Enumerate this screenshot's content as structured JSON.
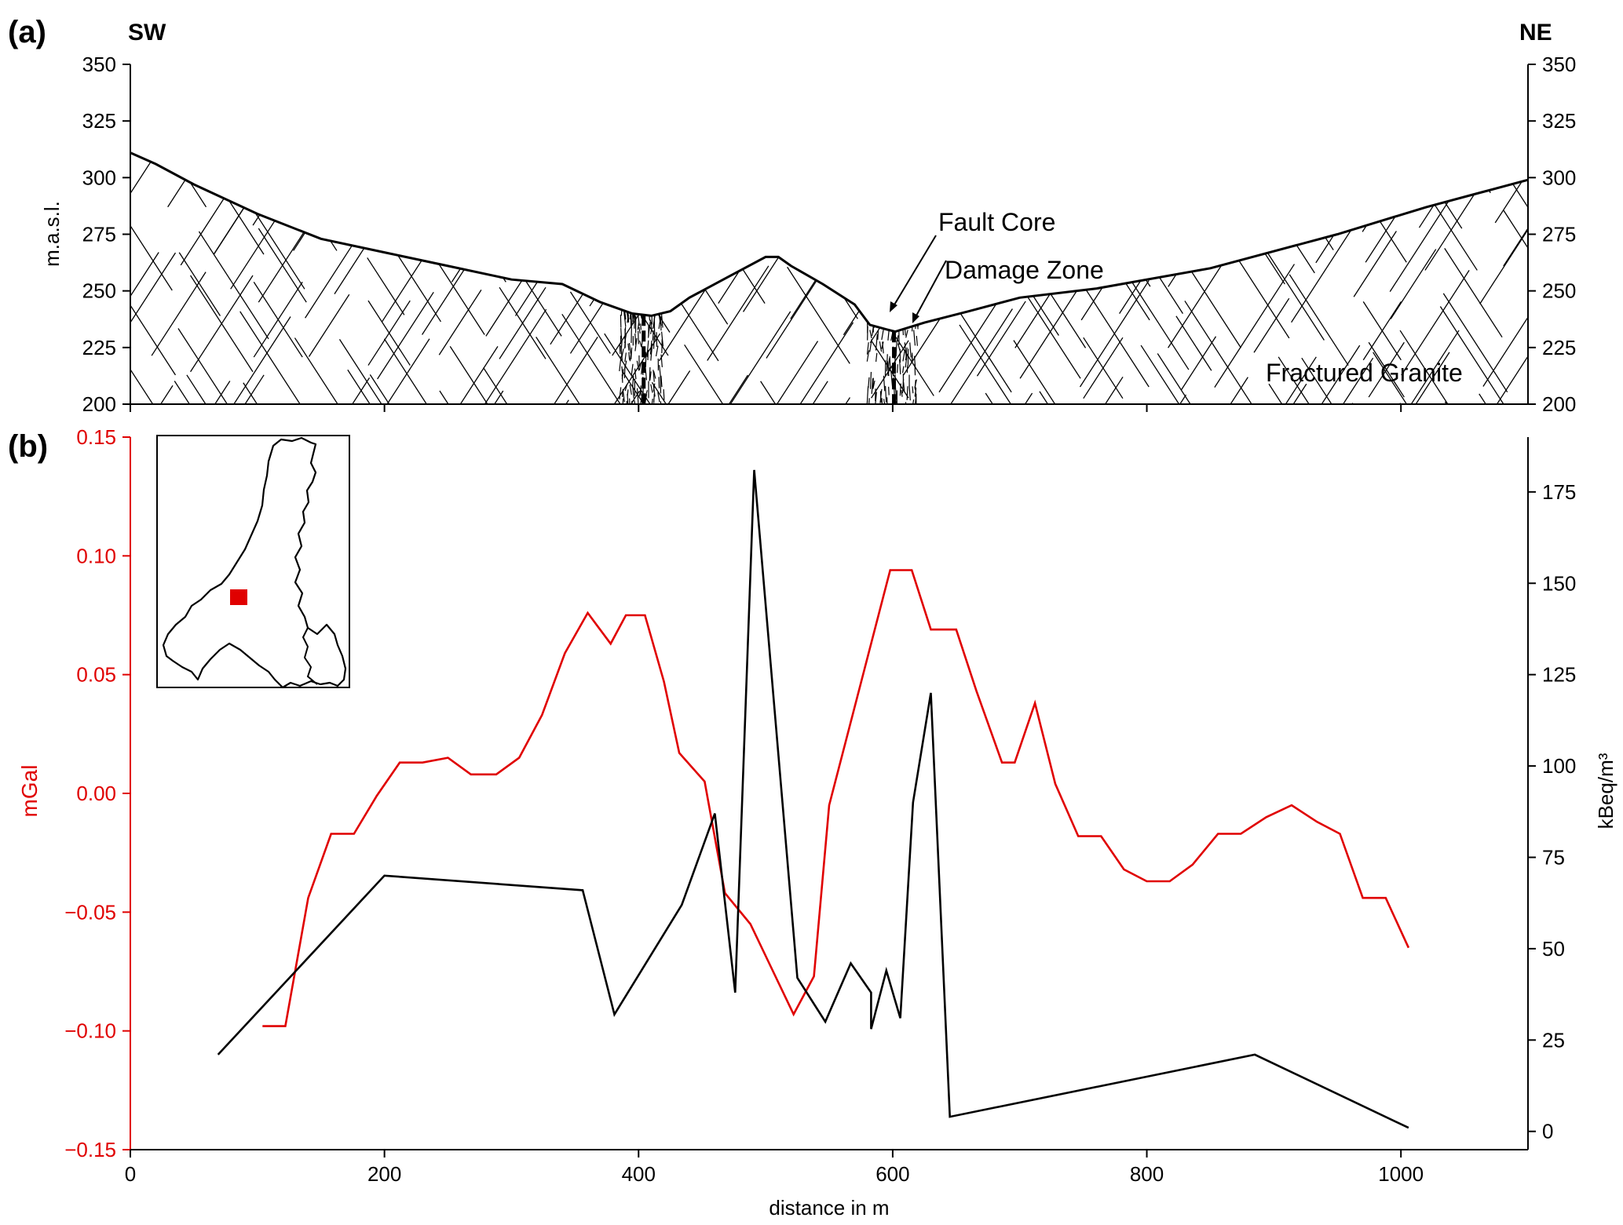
{
  "panels": {
    "a": {
      "letter": "(a)"
    },
    "b": {
      "letter": "(b)"
    }
  },
  "chart_data": [
    {
      "type": "area",
      "panel": "(a)",
      "direction_left": "SW",
      "direction_right": "NE",
      "ylabel": "m.a.s.l.",
      "xlim": [
        0,
        1100
      ],
      "ylim": [
        200,
        350
      ],
      "yticks": [
        200,
        225,
        250,
        275,
        300,
        325,
        350
      ],
      "xticks": [
        0,
        200,
        400,
        600,
        800,
        1000
      ],
      "topography": {
        "x": [
          0,
          20,
          50,
          100,
          150,
          200,
          250,
          300,
          340,
          370,
          395,
          410,
          425,
          440,
          470,
          500,
          510,
          520,
          545,
          570,
          582,
          595,
          602,
          625,
          660,
          700,
          760,
          850,
          950,
          1020,
          1060,
          1100
        ],
        "y": [
          311,
          306,
          297,
          284,
          273,
          267,
          261,
          255,
          253,
          245,
          240,
          239,
          241,
          247,
          256,
          265,
          265,
          261,
          253,
          244,
          235,
          233,
          232,
          236,
          241,
          247,
          251,
          260,
          275,
          287,
          293,
          299
        ]
      },
      "fault_core_x": [
        404,
        601
      ],
      "damage_zones": [
        [
          385,
          420
        ],
        [
          580,
          620
        ]
      ],
      "annotations": [
        "Fault Core",
        "Damage Zone",
        "Fractured Granite"
      ]
    },
    {
      "type": "line",
      "panel": "(b)",
      "xlabel": "distance in m",
      "ylabel_left": "mGal",
      "ylabel_right": "kBeq/m³",
      "xlim": [
        0,
        1100
      ],
      "ylim_left": [
        -0.15,
        0.15
      ],
      "ylim_right": [
        -5,
        190
      ],
      "xticks": [
        0,
        200,
        400,
        600,
        800,
        1000
      ],
      "yticks_left": [
        "−0.15",
        "−0.10",
        "−0.05",
        "0.00",
        "0.05",
        "0.10",
        "0.15"
      ],
      "yticks_left_values": [
        -0.15,
        -0.1,
        -0.05,
        0.0,
        0.05,
        0.1,
        0.15
      ],
      "yticks_right": [
        0,
        25,
        50,
        75,
        100,
        125,
        150,
        175
      ],
      "series": [
        {
          "axis": "left",
          "color": "#e00000",
          "x": [
            104,
            122,
            140,
            158,
            176,
            194,
            212,
            230,
            250,
            268,
            288,
            306,
            324,
            342,
            360,
            378,
            390,
            405,
            420,
            432,
            452,
            468,
            488,
            505,
            522,
            538,
            550,
            598,
            615,
            630,
            650,
            666,
            686,
            696,
            712,
            728,
            746,
            764,
            782,
            800,
            818,
            836,
            856,
            874,
            894,
            914,
            934,
            952,
            970,
            988,
            1006
          ],
          "y": [
            -0.098,
            -0.098,
            -0.044,
            -0.017,
            -0.017,
            -0.001,
            0.013,
            0.013,
            0.015,
            0.008,
            0.008,
            0.015,
            0.033,
            0.059,
            0.076,
            0.063,
            0.075,
            0.075,
            0.047,
            0.017,
            0.005,
            -0.042,
            -0.055,
            -0.074,
            -0.093,
            -0.077,
            -0.005,
            0.094,
            0.094,
            0.069,
            0.069,
            0.043,
            0.013,
            0.013,
            0.038,
            0.004,
            -0.018,
            -0.018,
            -0.032,
            -0.037,
            -0.037,
            -0.03,
            -0.017,
            -0.017,
            -0.01,
            -0.005,
            -0.012,
            -0.017,
            -0.044,
            -0.044,
            -0.065
          ]
        },
        {
          "axis": "right",
          "color": "#000000",
          "x": [
            69,
            200,
            356,
            381,
            434,
            460,
            476,
            491,
            525,
            547,
            567,
            583,
            583,
            595,
            606,
            616,
            630,
            645,
            885,
            1006
          ],
          "y": [
            21,
            70,
            66,
            32,
            62,
            87,
            38,
            181,
            42,
            30,
            46,
            38,
            28,
            44,
            31,
            90,
            120,
            4,
            21,
            1
          ]
        }
      ],
      "inset": {
        "marker_color": "#e00000"
      }
    }
  ]
}
